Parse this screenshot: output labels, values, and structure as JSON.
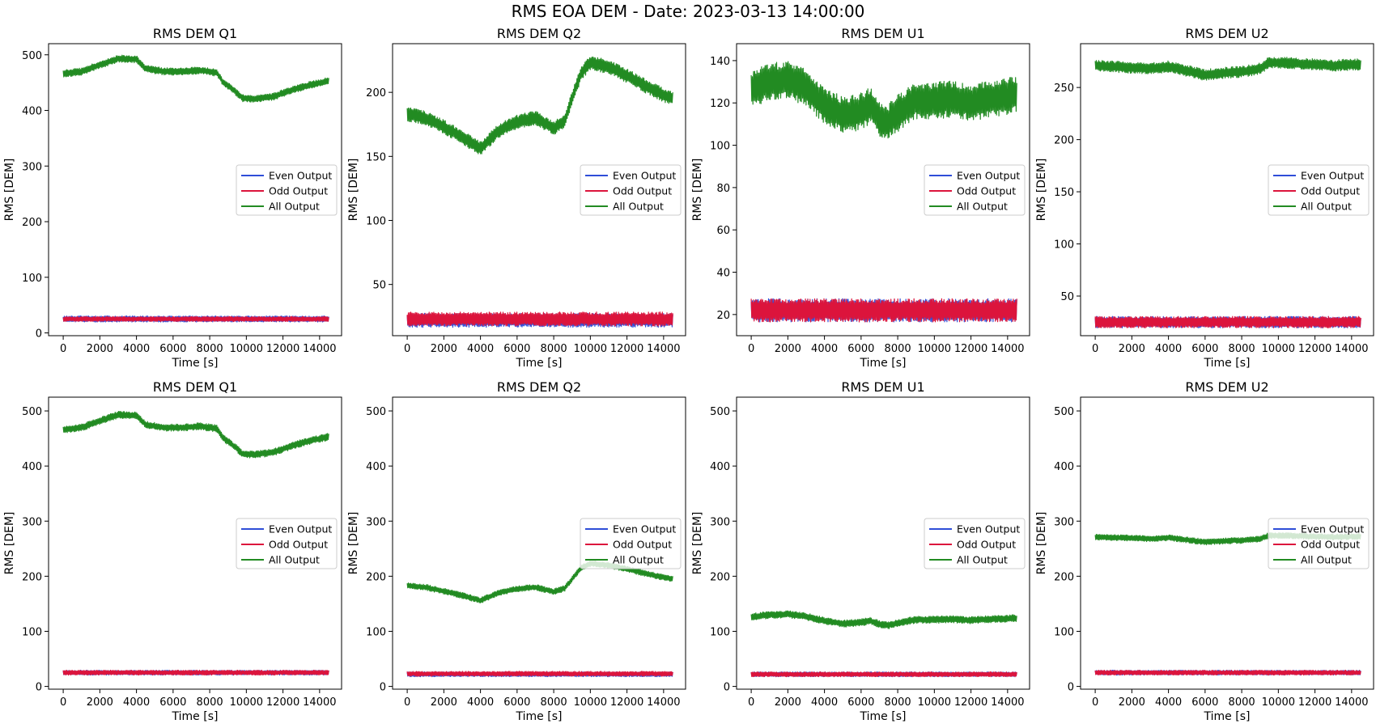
{
  "figure": {
    "title": "RMS EOA DEM - Date: 2023-03-13 14:00:00",
    "colors": {
      "even": "#2f4ed8",
      "odd": "#dc143c",
      "all": "#228b22"
    }
  },
  "chart_data": [
    {
      "type": "line",
      "title": "RMS DEM Q1",
      "xlabel": "Time [s]",
      "ylabel": "RMS [DEM]",
      "xlim": [
        -800,
        15200
      ],
      "ylim": [
        -5,
        520
      ],
      "xticks": [
        0,
        2000,
        4000,
        6000,
        8000,
        10000,
        12000,
        14000
      ],
      "yticks": [
        0,
        100,
        200,
        300,
        400,
        500
      ],
      "legend": {
        "position": "center-right",
        "entries": [
          "Even Output",
          "Odd Output",
          "All Output"
        ]
      },
      "series": [
        {
          "name": "Even Output",
          "center": [
            [
              0,
              25
            ],
            [
              14500,
              25
            ]
          ],
          "halfwidth": 5
        },
        {
          "name": "Odd Output",
          "center": [
            [
              0,
              25
            ],
            [
              14500,
              25
            ]
          ],
          "halfwidth": 4
        },
        {
          "name": "All Output",
          "center": [
            [
              0,
              466
            ],
            [
              1000,
              470
            ],
            [
              2000,
              482
            ],
            [
              3000,
              493
            ],
            [
              4000,
              492
            ],
            [
              4500,
              475
            ],
            [
              5500,
              470
            ],
            [
              6500,
              470
            ],
            [
              7500,
              472
            ],
            [
              8400,
              468
            ],
            [
              8700,
              452
            ],
            [
              9300,
              437
            ],
            [
              9800,
              422
            ],
            [
              10500,
              421
            ],
            [
              11500,
              425
            ],
            [
              12500,
              437
            ],
            [
              13500,
              446
            ],
            [
              14500,
              453
            ]
          ],
          "halfwidth": 6
        }
      ]
    },
    {
      "type": "line",
      "title": "RMS DEM Q2",
      "xlabel": "Time [s]",
      "ylabel": "RMS [DEM]",
      "xlim": [
        -800,
        15200
      ],
      "ylim": [
        10,
        238
      ],
      "xticks": [
        0,
        2000,
        4000,
        6000,
        8000,
        10000,
        12000,
        14000
      ],
      "yticks": [
        50,
        100,
        150,
        200
      ],
      "legend": {
        "position": "center-right",
        "entries": [
          "Even Output",
          "Odd Output",
          "All Output"
        ]
      },
      "series": [
        {
          "name": "Even Output",
          "center": [
            [
              0,
              22
            ],
            [
              14500,
              22
            ]
          ],
          "halfwidth": 5
        },
        {
          "name": "Odd Output",
          "center": [
            [
              0,
              23
            ],
            [
              14500,
              23
            ]
          ],
          "halfwidth": 5
        },
        {
          "name": "All Output",
          "center": [
            [
              0,
              183
            ],
            [
              1000,
              180
            ],
            [
              2000,
              173
            ],
            [
              3000,
              165
            ],
            [
              4000,
              156
            ],
            [
              4500,
              163
            ],
            [
              5000,
              170
            ],
            [
              6000,
              177
            ],
            [
              7000,
              180
            ],
            [
              8000,
              172
            ],
            [
              8600,
              178
            ],
            [
              9000,
              195
            ],
            [
              9500,
              215
            ],
            [
              10000,
              223
            ],
            [
              11000,
              220
            ],
            [
              12000,
              213
            ],
            [
              13000,
              205
            ],
            [
              14000,
              198
            ],
            [
              14500,
              195
            ]
          ],
          "halfwidth": 5
        }
      ]
    },
    {
      "type": "line",
      "title": "RMS DEM U1",
      "xlabel": "Time [s]",
      "ylabel": "RMS [DEM]",
      "xlim": [
        -800,
        15200
      ],
      "ylim": [
        10,
        148
      ],
      "xticks": [
        0,
        2000,
        4000,
        6000,
        8000,
        10000,
        12000,
        14000
      ],
      "yticks": [
        20,
        40,
        60,
        80,
        100,
        120,
        140
      ],
      "legend": {
        "position": "center-right",
        "entries": [
          "Even Output",
          "Odd Output",
          "All Output"
        ]
      },
      "series": [
        {
          "name": "Even Output",
          "center": [
            [
              0,
              22
            ],
            [
              14500,
              22
            ]
          ],
          "halfwidth": 5
        },
        {
          "name": "Odd Output",
          "center": [
            [
              0,
              22
            ],
            [
              14500,
              22
            ]
          ],
          "halfwidth": 5
        },
        {
          "name": "All Output",
          "center": [
            [
              0,
              126
            ],
            [
              1000,
              130
            ],
            [
              2000,
              131
            ],
            [
              3000,
              127
            ],
            [
              4000,
              119
            ],
            [
              5000,
              114
            ],
            [
              6000,
              116
            ],
            [
              6500,
              119
            ],
            [
              7000,
              113
            ],
            [
              7500,
              111
            ],
            [
              8000,
              115
            ],
            [
              9000,
              121
            ],
            [
              10000,
              121
            ],
            [
              11000,
              122
            ],
            [
              12000,
              120
            ],
            [
              13000,
              122
            ],
            [
              14000,
              123
            ],
            [
              14500,
              124
            ]
          ],
          "halfwidth": 8
        }
      ]
    },
    {
      "type": "line",
      "title": "RMS DEM U2",
      "xlabel": "Time [s]",
      "ylabel": "RMS [DEM]",
      "xlim": [
        -800,
        15200
      ],
      "ylim": [
        12,
        292
      ],
      "xticks": [
        0,
        2000,
        4000,
        6000,
        8000,
        10000,
        12000,
        14000
      ],
      "yticks": [
        50,
        100,
        150,
        200,
        250
      ],
      "legend": {
        "position": "center-right",
        "entries": [
          "Even Output",
          "Odd Output",
          "All Output"
        ]
      },
      "series": [
        {
          "name": "Even Output",
          "center": [
            [
              0,
              25
            ],
            [
              14500,
              25
            ]
          ],
          "halfwidth": 5
        },
        {
          "name": "Odd Output",
          "center": [
            [
              0,
              25
            ],
            [
              14500,
              25
            ]
          ],
          "halfwidth": 5
        },
        {
          "name": "All Output",
          "center": [
            [
              0,
              271
            ],
            [
              1000,
              270
            ],
            [
              2000,
              269
            ],
            [
              3000,
              268
            ],
            [
              4000,
              270
            ],
            [
              5000,
              266
            ],
            [
              6000,
              262
            ],
            [
              7000,
              264
            ],
            [
              8000,
              265
            ],
            [
              9000,
              268
            ],
            [
              9500,
              274
            ],
            [
              10000,
              274
            ],
            [
              11000,
              273
            ],
            [
              12000,
              272
            ],
            [
              13000,
              271
            ],
            [
              14000,
              272
            ],
            [
              14500,
              272
            ]
          ],
          "halfwidth": 5
        }
      ]
    },
    {
      "type": "line",
      "title": "RMS DEM Q1",
      "xlabel": "Time [s]",
      "ylabel": "RMS [DEM]",
      "xlim": [
        -800,
        15200
      ],
      "ylim": [
        -5,
        525
      ],
      "xticks": [
        0,
        2000,
        4000,
        6000,
        8000,
        10000,
        12000,
        14000
      ],
      "yticks": [
        0,
        100,
        200,
        300,
        400,
        500
      ],
      "legend": {
        "position": "center-right",
        "entries": [
          "Even Output",
          "Odd Output",
          "All Output"
        ]
      },
      "series": [
        {
          "name": "Even Output",
          "center": [
            [
              0,
              25
            ],
            [
              14500,
              25
            ]
          ],
          "halfwidth": 4
        },
        {
          "name": "Odd Output",
          "center": [
            [
              0,
              25
            ],
            [
              14500,
              25
            ]
          ],
          "halfwidth": 4
        },
        {
          "name": "All Output",
          "center": [
            [
              0,
              466
            ],
            [
              1000,
              470
            ],
            [
              2000,
              482
            ],
            [
              3000,
              493
            ],
            [
              4000,
              492
            ],
            [
              4500,
              475
            ],
            [
              5500,
              470
            ],
            [
              6500,
              470
            ],
            [
              7500,
              472
            ],
            [
              8400,
              468
            ],
            [
              8700,
              452
            ],
            [
              9300,
              437
            ],
            [
              9800,
              422
            ],
            [
              10500,
              421
            ],
            [
              11500,
              425
            ],
            [
              12500,
              437
            ],
            [
              13500,
              446
            ],
            [
              14500,
              453
            ]
          ],
          "halfwidth": 6
        }
      ]
    },
    {
      "type": "line",
      "title": "RMS DEM Q2",
      "xlabel": "Time [s]",
      "ylabel": "RMS [DEM]",
      "xlim": [
        -800,
        15200
      ],
      "ylim": [
        -5,
        525
      ],
      "xticks": [
        0,
        2000,
        4000,
        6000,
        8000,
        10000,
        12000,
        14000
      ],
      "yticks": [
        0,
        100,
        200,
        300,
        400,
        500
      ],
      "legend": {
        "position": "center-right",
        "entries": [
          "Even Output",
          "Odd Output",
          "All Output"
        ]
      },
      "series": [
        {
          "name": "Even Output",
          "center": [
            [
              0,
              22
            ],
            [
              14500,
              22
            ]
          ],
          "halfwidth": 4
        },
        {
          "name": "Odd Output",
          "center": [
            [
              0,
              23
            ],
            [
              14500,
              23
            ]
          ],
          "halfwidth": 4
        },
        {
          "name": "All Output",
          "center": [
            [
              0,
              183
            ],
            [
              1000,
              180
            ],
            [
              2000,
              173
            ],
            [
              3000,
              165
            ],
            [
              4000,
              156
            ],
            [
              4500,
              163
            ],
            [
              5000,
              170
            ],
            [
              6000,
              177
            ],
            [
              7000,
              180
            ],
            [
              8000,
              172
            ],
            [
              8600,
              178
            ],
            [
              9000,
              195
            ],
            [
              9500,
              215
            ],
            [
              10000,
              223
            ],
            [
              11000,
              220
            ],
            [
              12000,
              213
            ],
            [
              13000,
              205
            ],
            [
              14000,
              198
            ],
            [
              14500,
              195
            ]
          ],
          "halfwidth": 5
        }
      ]
    },
    {
      "type": "line",
      "title": "RMS DEM U1",
      "xlabel": "Time [s]",
      "ylabel": "RMS [DEM]",
      "xlim": [
        -800,
        15200
      ],
      "ylim": [
        -5,
        525
      ],
      "xticks": [
        0,
        2000,
        4000,
        6000,
        8000,
        10000,
        12000,
        14000
      ],
      "yticks": [
        0,
        100,
        200,
        300,
        400,
        500
      ],
      "legend": {
        "position": "center-right",
        "entries": [
          "Even Output",
          "Odd Output",
          "All Output"
        ]
      },
      "series": [
        {
          "name": "Even Output",
          "center": [
            [
              0,
              22
            ],
            [
              14500,
              22
            ]
          ],
          "halfwidth": 4
        },
        {
          "name": "Odd Output",
          "center": [
            [
              0,
              22
            ],
            [
              14500,
              22
            ]
          ],
          "halfwidth": 4
        },
        {
          "name": "All Output",
          "center": [
            [
              0,
              126
            ],
            [
              1000,
              130
            ],
            [
              2000,
              131
            ],
            [
              3000,
              127
            ],
            [
              4000,
              119
            ],
            [
              5000,
              114
            ],
            [
              6000,
              116
            ],
            [
              6500,
              119
            ],
            [
              7000,
              113
            ],
            [
              7500,
              111
            ],
            [
              8000,
              115
            ],
            [
              9000,
              121
            ],
            [
              10000,
              121
            ],
            [
              11000,
              122
            ],
            [
              12000,
              120
            ],
            [
              13000,
              122
            ],
            [
              14000,
              123
            ],
            [
              14500,
              124
            ]
          ],
          "halfwidth": 6
        }
      ]
    },
    {
      "type": "line",
      "title": "RMS DEM U2",
      "xlabel": "Time [s]",
      "ylabel": "RMS [DEM]",
      "xlim": [
        -800,
        15200
      ],
      "ylim": [
        -5,
        525
      ],
      "xticks": [
        0,
        2000,
        4000,
        6000,
        8000,
        10000,
        12000,
        14000
      ],
      "yticks": [
        0,
        100,
        200,
        300,
        400,
        500
      ],
      "legend": {
        "position": "center-right",
        "entries": [
          "Even Output",
          "Odd Output",
          "All Output"
        ]
      },
      "series": [
        {
          "name": "Even Output",
          "center": [
            [
              0,
              25
            ],
            [
              14500,
              25
            ]
          ],
          "halfwidth": 4
        },
        {
          "name": "Odd Output",
          "center": [
            [
              0,
              25
            ],
            [
              14500,
              25
            ]
          ],
          "halfwidth": 4
        },
        {
          "name": "All Output",
          "center": [
            [
              0,
              271
            ],
            [
              1000,
              270
            ],
            [
              2000,
              269
            ],
            [
              3000,
              268
            ],
            [
              4000,
              270
            ],
            [
              5000,
              266
            ],
            [
              6000,
              262
            ],
            [
              7000,
              264
            ],
            [
              8000,
              265
            ],
            [
              9000,
              268
            ],
            [
              9500,
              274
            ],
            [
              10000,
              274
            ],
            [
              11000,
              273
            ],
            [
              12000,
              272
            ],
            [
              13000,
              271
            ],
            [
              14000,
              272
            ],
            [
              14500,
              272
            ]
          ],
          "halfwidth": 5
        }
      ]
    }
  ]
}
